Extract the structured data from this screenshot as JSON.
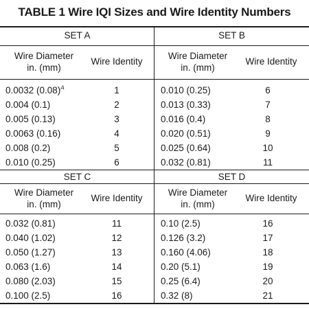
{
  "title": "TABLE 1 Wire IQI Sizes and Wire Identity Numbers",
  "headers": {
    "diameter_line1": "Wire Diameter",
    "diameter_line2": "in. (mm)",
    "identity": "Wire Identity"
  },
  "sets": {
    "a": {
      "label": "SET A",
      "rows": [
        {
          "diameter": "0.0032  (0.08)",
          "footnote": "A",
          "identity": "1"
        },
        {
          "diameter": "0.004  (0.1)",
          "footnote": "",
          "identity": "2"
        },
        {
          "diameter": "0.005  (0.13)",
          "footnote": "",
          "identity": "3"
        },
        {
          "diameter": "0.0063  (0.16)",
          "footnote": "",
          "identity": "4"
        },
        {
          "diameter": "0.008  (0.2)",
          "footnote": "",
          "identity": "5"
        },
        {
          "diameter": "0.010  (0.25)",
          "footnote": "",
          "identity": "6"
        }
      ]
    },
    "b": {
      "label": "SET B",
      "rows": [
        {
          "diameter": "0.010  (0.25)",
          "identity": "6"
        },
        {
          "diameter": "0.013  (0.33)",
          "identity": "7"
        },
        {
          "diameter": "0.016  (0.4)",
          "identity": "8"
        },
        {
          "diameter": "0.020  (0.51)",
          "identity": "9"
        },
        {
          "diameter": "0.025  (0.64)",
          "identity": "10"
        },
        {
          "diameter": "0.032  (0.81)",
          "identity": "11"
        }
      ]
    },
    "c": {
      "label": "SET C",
      "rows": [
        {
          "diameter": "0.032  (0.81)",
          "identity": "11"
        },
        {
          "diameter": "0.040  (1.02)",
          "identity": "12"
        },
        {
          "diameter": "0.050  (1.27)",
          "identity": "13"
        },
        {
          "diameter": "0.063  (1.6)",
          "identity": "14"
        },
        {
          "diameter": "0.080  (2.03)",
          "identity": "15"
        },
        {
          "diameter": "0.100  (2.5)",
          "identity": "16"
        }
      ]
    },
    "d": {
      "label": "SET D",
      "rows": [
        {
          "diameter": "0.10  (2.5)",
          "identity": "16"
        },
        {
          "diameter": "0.126  (3.2)",
          "identity": "17"
        },
        {
          "diameter": "0.160  (4.06)",
          "identity": "18"
        },
        {
          "diameter": "0.20  (5.1)",
          "identity": "19"
        },
        {
          "diameter": "0.25  (6.4)",
          "identity": "20"
        },
        {
          "diameter": "0.32  (8)",
          "identity": "21"
        }
      ]
    }
  }
}
